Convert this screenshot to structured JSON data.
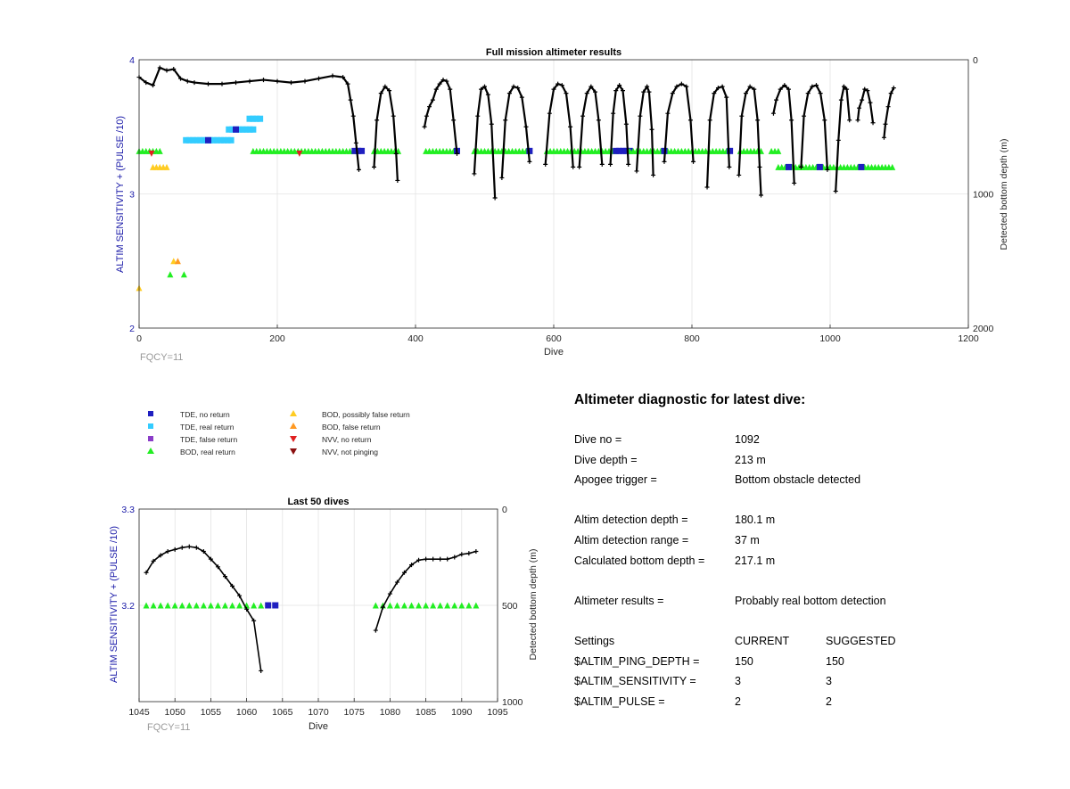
{
  "colors": {
    "axis_left": "#1a1aa8",
    "tde_no_return": "#1f1fc0",
    "tde_real_return": "#33ccff",
    "tde_false_return": "#8a3cc8",
    "bod_real_return": "#22ee22",
    "bod_possibly_false": "#ffcc22",
    "bod_false_return": "#ff9922",
    "nvv_no_return": "#e02020",
    "nvv_not_pinging": "#8b1010",
    "depth_line": "#000000"
  },
  "legend": {
    "tde_no_return": "TDE, no return",
    "tde_real_return": "TDE, real return",
    "tde_false_return": "TDE, false return",
    "bod_real_return": "BOD, real return",
    "bod_possibly_false": "BOD, possibly false return",
    "bod_false_return": "BOD, false return",
    "nvv_no_return": "NVV, no return",
    "nvv_not_pinging": "NVV, not pinging"
  },
  "chart_data": [
    {
      "type": "scatter",
      "title": "Full mission altimeter results",
      "xlabel": "Dive",
      "ylabel_left": "ALTIM SENSITIVITY + (PULSE /10)",
      "ylabel_right": "Detected bottom depth (m)",
      "annotation": "FQCY=11",
      "xlim": [
        0,
        1200
      ],
      "ylim_left": [
        2,
        4
      ],
      "ylim_right": [
        2000,
        0
      ],
      "xticks": [
        0,
        200,
        400,
        600,
        800,
        1000,
        1200
      ],
      "yticks_left": [
        2,
        3,
        4
      ],
      "yticks_right": [
        0,
        1000,
        2000
      ],
      "grid": true,
      "settings_segments": [
        {
          "from": 0,
          "to": 30,
          "value": 3.32,
          "kind": "bod_real_return"
        },
        {
          "from": 20,
          "to": 42,
          "value": 3.2,
          "kind": "bod_possibly_false"
        },
        {
          "from": 68,
          "to": 135,
          "value": 3.4,
          "kind": "tde_real_return"
        },
        {
          "from": 130,
          "to": 165,
          "value": 3.48,
          "kind": "tde_real_return"
        },
        {
          "from": 160,
          "to": 175,
          "value": 3.56,
          "kind": "tde_real_return"
        },
        {
          "from": 165,
          "to": 312,
          "value": 3.32,
          "kind": "bod_real_return"
        },
        {
          "from": 312,
          "to": 325,
          "value": 3.32,
          "kind": "tde_no_return"
        },
        {
          "from": 340,
          "to": 375,
          "value": 3.32,
          "kind": "bod_real_return"
        },
        {
          "from": 415,
          "to": 460,
          "value": 3.32,
          "kind": "bod_real_return"
        },
        {
          "from": 485,
          "to": 565,
          "value": 3.32,
          "kind": "bod_real_return"
        },
        {
          "from": 590,
          "to": 650,
          "value": 3.32,
          "kind": "bod_real_return"
        },
        {
          "from": 650,
          "to": 690,
          "value": 3.32,
          "kind": "bod_real_return"
        },
        {
          "from": 690,
          "to": 710,
          "value": 3.32,
          "kind": "tde_no_return"
        },
        {
          "from": 710,
          "to": 760,
          "value": 3.32,
          "kind": "bod_real_return"
        },
        {
          "from": 765,
          "to": 810,
          "value": 3.32,
          "kind": "bod_real_return"
        },
        {
          "from": 815,
          "to": 850,
          "value": 3.32,
          "kind": "bod_real_return"
        },
        {
          "from": 870,
          "to": 900,
          "value": 3.32,
          "kind": "bod_real_return"
        },
        {
          "from": 915,
          "to": 925,
          "value": 3.32,
          "kind": "bod_real_return"
        },
        {
          "from": 925,
          "to": 1000,
          "value": 3.2,
          "kind": "bod_real_return"
        },
        {
          "from": 1000,
          "to": 1090,
          "value": 3.2,
          "kind": "bod_real_return"
        }
      ],
      "settings_points": [
        {
          "x": 0,
          "y": 2.3,
          "kind": "bod_possibly_false"
        },
        {
          "x": 18,
          "y": 3.3,
          "kind": "nvv_no_return"
        },
        {
          "x": 50,
          "y": 2.5,
          "kind": "bod_possibly_false"
        },
        {
          "x": 56,
          "y": 2.5,
          "kind": "bod_false_return"
        },
        {
          "x": 45,
          "y": 2.4,
          "kind": "bod_real_return"
        },
        {
          "x": 65,
          "y": 2.4,
          "kind": "bod_real_return"
        },
        {
          "x": 232,
          "y": 3.3,
          "kind": "nvv_no_return"
        },
        {
          "x": 100,
          "y": 3.4,
          "kind": "tde_no_return"
        },
        {
          "x": 140,
          "y": 3.48,
          "kind": "tde_no_return"
        },
        {
          "x": 460,
          "y": 3.32,
          "kind": "tde_no_return"
        },
        {
          "x": 565,
          "y": 3.32,
          "kind": "tde_no_return"
        },
        {
          "x": 760,
          "y": 3.32,
          "kind": "tde_no_return"
        },
        {
          "x": 855,
          "y": 3.32,
          "kind": "tde_no_return"
        },
        {
          "x": 940,
          "y": 3.2,
          "kind": "tde_no_return"
        },
        {
          "x": 985,
          "y": 3.2,
          "kind": "tde_no_return"
        },
        {
          "x": 1045,
          "y": 3.2,
          "kind": "tde_no_return"
        }
      ],
      "depth_series": [
        {
          "dives": [
            0,
            10,
            20,
            30,
            40,
            50,
            60,
            70,
            80,
            100,
            120,
            140,
            160,
            180,
            200,
            220,
            240,
            260,
            280,
            295,
            302,
            306,
            310,
            314,
            318
          ],
          "depths": [
            130,
            170,
            190,
            60,
            80,
            70,
            140,
            160,
            170,
            180,
            180,
            170,
            160,
            150,
            160,
            170,
            160,
            140,
            120,
            130,
            180,
            300,
            420,
            620,
            820
          ]
        },
        {
          "dives": [
            340,
            344,
            350,
            356,
            362,
            368,
            372,
            374
          ],
          "depths": [
            800,
            450,
            250,
            200,
            230,
            420,
            700,
            900
          ]
        },
        {
          "dives": [
            413,
            416,
            420,
            425,
            430,
            435,
            440,
            445,
            450,
            455,
            460
          ],
          "depths": [
            500,
            420,
            350,
            300,
            220,
            180,
            150,
            160,
            220,
            450,
            700
          ]
        },
        {
          "dives": [
            485,
            490,
            495,
            500,
            505,
            510,
            515
          ],
          "depths": [
            850,
            420,
            220,
            200,
            260,
            480,
            1030
          ]
        },
        {
          "dives": [
            525,
            530,
            536,
            542,
            548,
            554,
            560,
            565
          ],
          "depths": [
            880,
            450,
            250,
            200,
            210,
            280,
            500,
            760
          ]
        },
        {
          "dives": [
            588,
            594,
            600,
            606,
            612,
            618,
            624,
            628
          ],
          "depths": [
            780,
            400,
            220,
            180,
            190,
            250,
            500,
            800
          ]
        },
        {
          "dives": [
            637,
            642,
            648,
            654,
            660,
            665,
            670
          ],
          "depths": [
            800,
            420,
            250,
            200,
            240,
            450,
            780
          ]
        },
        {
          "dives": [
            682,
            686,
            690,
            695,
            700,
            705,
            708
          ],
          "depths": [
            780,
            400,
            230,
            190,
            230,
            480,
            780
          ]
        },
        {
          "dives": [
            720,
            725,
            730,
            735,
            738,
            742,
            744
          ],
          "depths": [
            830,
            420,
            240,
            200,
            240,
            520,
            860
          ]
        },
        {
          "dives": [
            760,
            765,
            772,
            778,
            785,
            792,
            798,
            802
          ],
          "depths": [
            760,
            400,
            250,
            200,
            180,
            200,
            450,
            760
          ]
        },
        {
          "dives": [
            822,
            826,
            832,
            838,
            844,
            850,
            854
          ],
          "depths": [
            950,
            450,
            250,
            210,
            200,
            280,
            800
          ]
        },
        {
          "dives": [
            868,
            872,
            878,
            884,
            890,
            895,
            898,
            900
          ],
          "depths": [
            860,
            420,
            250,
            200,
            220,
            450,
            800,
            1010
          ]
        },
        {
          "dives": [
            918,
            922,
            928,
            934,
            940,
            944,
            948
          ],
          "depths": [
            400,
            300,
            220,
            190,
            220,
            450,
            920
          ]
        },
        {
          "dives": [
            958,
            962,
            968,
            974,
            980,
            986,
            992,
            996
          ],
          "depths": [
            800,
            420,
            250,
            200,
            190,
            250,
            450,
            820
          ]
        },
        {
          "dives": [
            1008,
            1012,
            1016,
            1020,
            1024,
            1028
          ],
          "depths": [
            980,
            600,
            300,
            200,
            220,
            450
          ]
        },
        {
          "dives": [
            1040,
            1042,
            1046,
            1050,
            1054,
            1058,
            1062
          ],
          "depths": [
            450,
            360,
            300,
            220,
            230,
            320,
            470
          ]
        },
        {
          "dives": [
            1078,
            1080,
            1084,
            1088,
            1092
          ],
          "depths": [
            580,
            480,
            350,
            250,
            210
          ]
        }
      ]
    },
    {
      "type": "scatter",
      "title": "Last 50 dives",
      "xlabel": "Dive",
      "ylabel_left": "ALTIM SENSITIVITY + (PULSE /10)",
      "ylabel_right": "Detected bottom depth (m)",
      "annotation": "FQCY=11",
      "xlim": [
        1045,
        1095
      ],
      "ylim_left": [
        3.1,
        3.3
      ],
      "ylim_right": [
        1000,
        0
      ],
      "xticks": [
        1045,
        1050,
        1055,
        1060,
        1065,
        1070,
        1075,
        1080,
        1085,
        1090,
        1095
      ],
      "yticks_left": [
        3.2,
        3.3
      ],
      "yticks_right": [
        0,
        500,
        1000
      ],
      "grid": true,
      "settings_points": [
        {
          "x": 1046,
          "y": 3.2,
          "kind": "bod_real_return"
        },
        {
          "x": 1047,
          "y": 3.2,
          "kind": "bod_real_return"
        },
        {
          "x": 1048,
          "y": 3.2,
          "kind": "bod_real_return"
        },
        {
          "x": 1049,
          "y": 3.2,
          "kind": "bod_real_return"
        },
        {
          "x": 1050,
          "y": 3.2,
          "kind": "bod_real_return"
        },
        {
          "x": 1051,
          "y": 3.2,
          "kind": "bod_real_return"
        },
        {
          "x": 1052,
          "y": 3.2,
          "kind": "bod_real_return"
        },
        {
          "x": 1053,
          "y": 3.2,
          "kind": "bod_real_return"
        },
        {
          "x": 1054,
          "y": 3.2,
          "kind": "bod_real_return"
        },
        {
          "x": 1055,
          "y": 3.2,
          "kind": "bod_real_return"
        },
        {
          "x": 1056,
          "y": 3.2,
          "kind": "bod_real_return"
        },
        {
          "x": 1057,
          "y": 3.2,
          "kind": "bod_real_return"
        },
        {
          "x": 1058,
          "y": 3.2,
          "kind": "bod_real_return"
        },
        {
          "x": 1059,
          "y": 3.2,
          "kind": "bod_real_return"
        },
        {
          "x": 1060,
          "y": 3.2,
          "kind": "bod_real_return"
        },
        {
          "x": 1061,
          "y": 3.2,
          "kind": "bod_real_return"
        },
        {
          "x": 1062,
          "y": 3.2,
          "kind": "bod_real_return"
        },
        {
          "x": 1063,
          "y": 3.2,
          "kind": "tde_no_return"
        },
        {
          "x": 1064,
          "y": 3.2,
          "kind": "tde_no_return"
        },
        {
          "x": 1078,
          "y": 3.2,
          "kind": "bod_real_return"
        },
        {
          "x": 1079,
          "y": 3.2,
          "kind": "bod_real_return"
        },
        {
          "x": 1080,
          "y": 3.2,
          "kind": "bod_real_return"
        },
        {
          "x": 1081,
          "y": 3.2,
          "kind": "bod_real_return"
        },
        {
          "x": 1082,
          "y": 3.2,
          "kind": "bod_real_return"
        },
        {
          "x": 1083,
          "y": 3.2,
          "kind": "bod_real_return"
        },
        {
          "x": 1084,
          "y": 3.2,
          "kind": "bod_real_return"
        },
        {
          "x": 1085,
          "y": 3.2,
          "kind": "bod_real_return"
        },
        {
          "x": 1086,
          "y": 3.2,
          "kind": "bod_real_return"
        },
        {
          "x": 1087,
          "y": 3.2,
          "kind": "bod_real_return"
        },
        {
          "x": 1088,
          "y": 3.2,
          "kind": "bod_real_return"
        },
        {
          "x": 1089,
          "y": 3.2,
          "kind": "bod_real_return"
        },
        {
          "x": 1090,
          "y": 3.2,
          "kind": "bod_real_return"
        },
        {
          "x": 1091,
          "y": 3.2,
          "kind": "bod_real_return"
        },
        {
          "x": 1092,
          "y": 3.2,
          "kind": "bod_real_return"
        }
      ],
      "depth_series": [
        {
          "dives": [
            1046,
            1047,
            1048,
            1049,
            1050,
            1051,
            1052,
            1053,
            1054,
            1055,
            1056,
            1057,
            1058,
            1059,
            1060,
            1061,
            1062
          ],
          "depths": [
            330,
            270,
            240,
            220,
            210,
            200,
            195,
            200,
            220,
            260,
            300,
            350,
            400,
            450,
            520,
            580,
            840
          ]
        },
        {
          "dives": [
            1078,
            1079,
            1080,
            1081,
            1082,
            1083,
            1084,
            1085,
            1086,
            1087,
            1088,
            1089,
            1090,
            1091,
            1092
          ],
          "depths": [
            630,
            510,
            440,
            380,
            330,
            290,
            265,
            260,
            260,
            260,
            260,
            250,
            235,
            230,
            220
          ]
        }
      ]
    }
  ],
  "diagnostic": {
    "title": "Altimeter diagnostic for latest dive:",
    "dive_no_label": "Dive no =",
    "dive_no": "1092",
    "dive_depth_label": "Dive depth =",
    "dive_depth": "213 m",
    "apogee_label": "Apogee trigger =",
    "apogee": "Bottom obstacle detected",
    "det_depth_label": "Altim detection depth =",
    "det_depth": "180.1 m",
    "det_range_label": "Altim detection range =",
    "det_range": "37 m",
    "calc_depth_label": "Calculated bottom depth =",
    "calc_depth": "217.1 m",
    "results_label": "Altimeter results =",
    "results": "Probably real bottom detection",
    "settings_label": "Settings",
    "current_label": "CURRENT",
    "suggested_label": "SUGGESTED",
    "ping_label": "$ALTIM_PING_DEPTH =",
    "ping_current": "150",
    "ping_suggested": "150",
    "sens_label": "$ALTIM_SENSITIVITY =",
    "sens_current": "3",
    "sens_suggested": "3",
    "pulse_label": "$ALTIM_PULSE =",
    "pulse_current": "2",
    "pulse_suggested": "2"
  }
}
